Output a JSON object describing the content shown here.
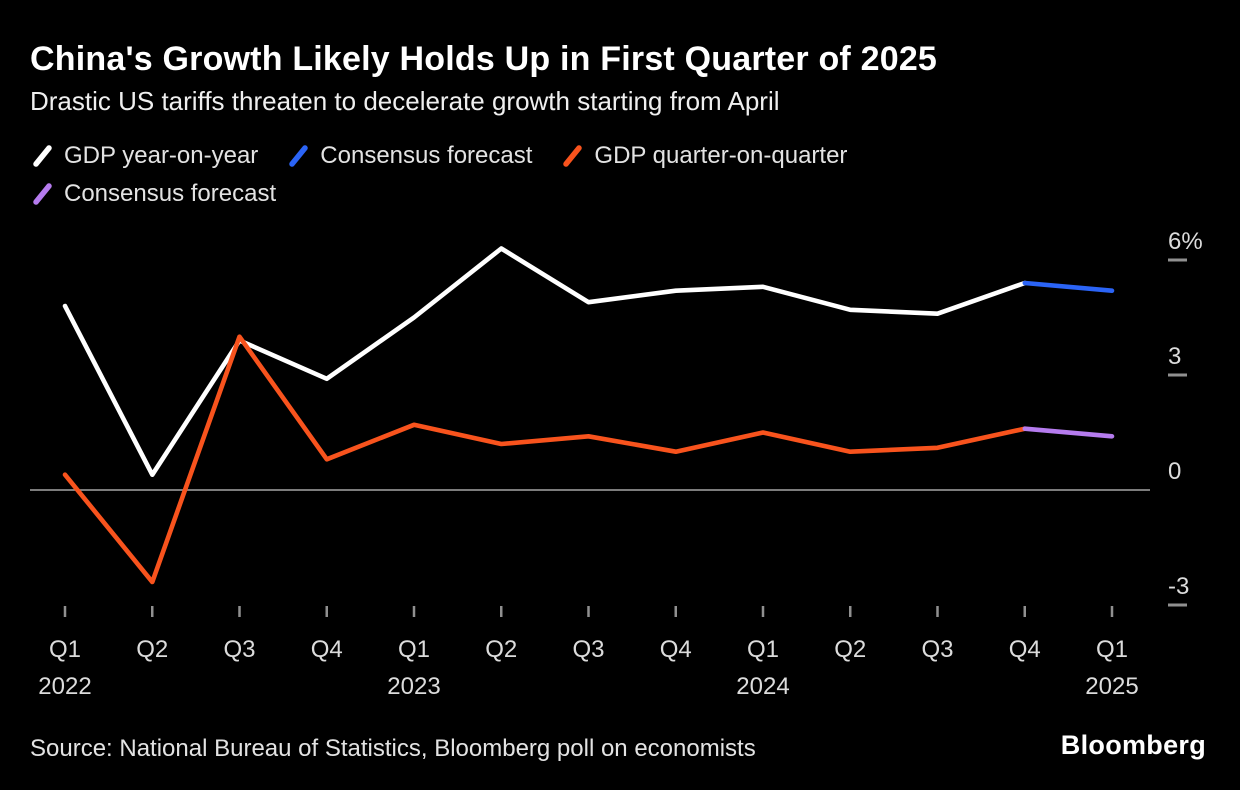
{
  "header": {
    "title": "China's Growth Likely Holds Up in First Quarter of 2025",
    "subtitle": "Drastic US tariffs threaten to decelerate growth starting from April"
  },
  "legend": [
    {
      "label": "GDP year-on-year",
      "color": "#ffffff"
    },
    {
      "label": "Consensus forecast",
      "color": "#2b64f6"
    },
    {
      "label": "GDP quarter-on-quarter",
      "color": "#f8531d"
    },
    {
      "label": "Consensus forecast",
      "color": "#b57bee"
    }
  ],
  "chart_data": {
    "type": "line",
    "title": "China's Growth Likely Holds Up in First Quarter of 2025",
    "subtitle": "Drastic US tariffs threaten to decelerate growth starting from April",
    "xlabel": "",
    "ylabel": "",
    "x": [
      "Q1 2022",
      "Q2 2022",
      "Q3 2022",
      "Q4 2022",
      "Q1 2023",
      "Q2 2023",
      "Q3 2023",
      "Q4 2023",
      "Q1 2024",
      "Q2 2024",
      "Q3 2024",
      "Q4 2024",
      "Q1 2025"
    ],
    "series": [
      {
        "name": "GDP year-on-year",
        "color": "#ffffff",
        "values": [
          4.8,
          0.4,
          3.9,
          2.9,
          4.5,
          6.3,
          4.9,
          5.2,
          5.3,
          4.7,
          4.6,
          5.4,
          null
        ]
      },
      {
        "name": "Consensus forecast (year-on-year)",
        "color": "#2b64f6",
        "values": [
          null,
          null,
          null,
          null,
          null,
          null,
          null,
          null,
          null,
          null,
          null,
          5.4,
          5.2
        ]
      },
      {
        "name": "GDP quarter-on-quarter",
        "color": "#f8531d",
        "values": [
          0.4,
          -2.4,
          4.0,
          0.8,
          1.7,
          1.2,
          1.4,
          1.0,
          1.5,
          1.0,
          1.1,
          1.6,
          null
        ]
      },
      {
        "name": "Consensus forecast (quarter-on-quarter)",
        "color": "#b57bee",
        "values": [
          null,
          null,
          null,
          null,
          null,
          null,
          null,
          null,
          null,
          null,
          null,
          1.6,
          1.4
        ]
      }
    ],
    "yticks": [
      {
        "value": 6,
        "label": "6%"
      },
      {
        "value": 3,
        "label": "3"
      },
      {
        "value": 0,
        "label": "0"
      },
      {
        "value": -3,
        "label": "-3"
      }
    ],
    "ylim": [
      -3.4,
      6.8
    ],
    "grid": false,
    "zero_line": true,
    "legend_position": "top"
  },
  "footer": {
    "source": "Source: National Bureau of Statistics, Bloomberg poll on economists",
    "brand": "Bloomberg"
  }
}
